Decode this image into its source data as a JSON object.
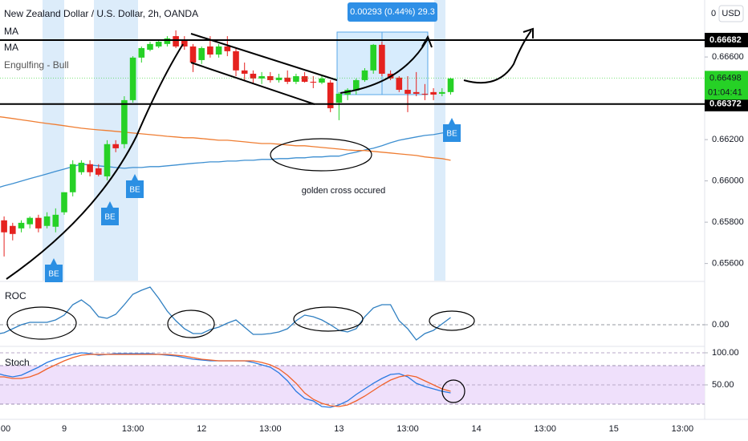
{
  "chart_data": {
    "type": "candlestick",
    "title": "New Zealand Dollar / U.S. Dollar, 2h, OANDA",
    "signal_name": "Engulfing - Bull",
    "signal_marker": "BE",
    "corner_text": "0",
    "currency_label": "USD",
    "measure_label": "0.00293 (0.44%) 29.3",
    "annotation": "golden cross occured",
    "up_color": "#26d126",
    "down_color": "#e5221f",
    "categories": [
      "00",
      null,
      null,
      null,
      null,
      null,
      null,
      null,
      "9",
      null,
      null,
      null,
      null,
      null,
      null,
      null,
      "13:00",
      null,
      null,
      null,
      null,
      null,
      null,
      null,
      "12",
      null,
      null,
      null,
      null,
      null,
      null,
      null,
      "13:00",
      null,
      null,
      null,
      null,
      null,
      null,
      null,
      "13",
      null,
      null,
      null,
      null,
      null,
      null,
      null,
      "13:00",
      null,
      null,
      null,
      null,
      null,
      null,
      null,
      "14",
      null,
      null,
      null,
      null,
      null,
      null,
      null,
      "13:00",
      null,
      null,
      null,
      null,
      null,
      null,
      null,
      "15",
      null,
      null,
      null,
      null,
      null,
      null,
      null,
      "13:00"
    ],
    "open": [
      null,
      0.65809,
      0.65782,
      0.6577,
      0.6579,
      0.65821,
      0.65782,
      0.65778,
      0.65848,
      0.65945,
      0.66042,
      0.66081,
      0.66061,
      0.66022,
      0.66178,
      0.66178,
      0.66391,
      0.66597,
      0.66635,
      0.66651,
      0.66663,
      0.66701,
      0.66682,
      0.66651,
      0.66585,
      0.66651,
      0.66612,
      0.66651,
      0.66628,
      0.66535,
      0.66519,
      0.66496,
      0.66507,
      0.66488,
      0.665,
      0.6648,
      0.66507,
      0.6648,
      0.66476,
      0.66476,
      0.66379,
      0.66418,
      0.66438,
      0.66488,
      0.66535,
      0.66659,
      0.66519,
      0.665,
      0.66441,
      0.6643,
      0.66422,
      0.6643,
      0.66422,
      0.6643,
      null,
      null,
      null,
      null,
      null,
      null,
      null,
      null,
      null,
      null,
      null,
      null,
      null,
      null,
      null,
      null,
      null,
      null,
      null,
      null,
      null,
      null,
      null,
      null,
      null,
      null,
      null
    ],
    "high": [
      null,
      0.65828,
      0.65797,
      0.65809,
      0.65828,
      0.65836,
      0.65848,
      0.65867,
      0.65945,
      0.661,
      0.661,
      0.661,
      0.66081,
      0.66197,
      0.66197,
      0.6641,
      0.66604,
      0.66651,
      0.66674,
      0.66682,
      0.66701,
      0.66729,
      0.66701,
      0.66663,
      0.66651,
      0.66701,
      0.66663,
      0.66701,
      0.66643,
      0.66573,
      0.66535,
      0.66527,
      0.66527,
      0.66519,
      0.66535,
      0.66519,
      0.66527,
      0.66507,
      0.66507,
      0.66488,
      0.6643,
      0.66449,
      0.66496,
      0.66546,
      0.66663,
      0.66674,
      0.66535,
      0.66507,
      0.66507,
      0.66527,
      0.66469,
      0.66449,
      0.66449,
      0.665,
      null,
      null,
      null,
      null,
      null,
      null,
      null,
      null,
      null,
      null,
      null,
      null,
      null,
      null,
      null,
      null,
      null,
      null,
      null,
      null,
      null,
      null,
      null,
      null,
      null,
      null,
      null
    ],
    "low": [
      null,
      0.65634,
      0.65712,
      0.65751,
      0.6577,
      0.65751,
      0.6577,
      0.65751,
      0.65836,
      0.65925,
      0.6603,
      0.66022,
      0.66022,
      0.66003,
      0.66139,
      0.66158,
      0.66379,
      0.66573,
      0.66628,
      0.66643,
      0.66651,
      0.66643,
      0.66635,
      0.66527,
      0.66566,
      0.66597,
      0.66597,
      0.66604,
      0.66507,
      0.66488,
      0.66469,
      0.66469,
      0.66476,
      0.66476,
      0.66469,
      0.66469,
      0.66476,
      0.66449,
      0.66469,
      0.66333,
      0.66294,
      0.66391,
      0.66418,
      0.6648,
      0.66519,
      0.66507,
      0.66488,
      0.6643,
      0.66333,
      0.6641,
      0.66391,
      0.66391,
      0.6641,
      0.66418,
      null,
      null,
      null,
      null,
      null,
      null,
      null,
      null,
      null,
      null,
      null,
      null,
      null,
      null,
      null,
      null,
      null,
      null,
      null,
      null,
      null,
      null,
      null,
      null,
      null,
      null,
      null
    ],
    "close": [
      null,
      0.65751,
      0.65743,
      0.65797,
      0.65821,
      0.6577,
      0.65828,
      0.65836,
      0.65945,
      0.66081,
      0.66088,
      0.66042,
      0.6603,
      0.66178,
      0.66158,
      0.66391,
      0.66597,
      0.66643,
      0.66663,
      0.66674,
      0.6669,
      0.66651,
      0.66651,
      0.66573,
      0.66643,
      0.66612,
      0.66651,
      0.66628,
      0.66535,
      0.66519,
      0.66496,
      0.66507,
      0.66488,
      0.665,
      0.6648,
      0.66507,
      0.6648,
      0.66476,
      0.66496,
      0.66352,
      0.66422,
      0.66441,
      0.66488,
      0.66535,
      0.66659,
      0.66519,
      0.66496,
      0.66441,
      0.66422,
      0.66422,
      0.66418,
      0.66418,
      0.6643,
      0.66496,
      null,
      null,
      null,
      null,
      null,
      null,
      null,
      null,
      null,
      null,
      null,
      null,
      null,
      null,
      null,
      null,
      null,
      null,
      null,
      null,
      null,
      null,
      null,
      null,
      null,
      null,
      null
    ],
    "series": [
      {
        "name": "MA",
        "color": "#3d8fd1",
        "values": [
          0.65964,
          0.65976,
          0.65987,
          0.65999,
          0.66011,
          0.66022,
          0.66034,
          0.66046,
          0.66057,
          0.66069,
          0.66081,
          0.66077,
          0.66073,
          0.66069,
          0.66065,
          0.66061,
          0.66065,
          0.66065,
          0.66069,
          0.66069,
          0.66073,
          0.66077,
          0.66081,
          0.66085,
          0.66088,
          0.66092,
          0.66092,
          0.66096,
          0.66096,
          0.661,
          0.661,
          0.66104,
          0.66104,
          0.66108,
          0.66108,
          0.66112,
          0.66112,
          0.66116,
          0.66116,
          0.6612,
          0.6612,
          0.66131,
          0.66139,
          0.6615,
          0.66158,
          0.6617,
          0.66185,
          0.66197,
          0.66205,
          0.66213,
          0.6622,
          0.66224,
          0.66232,
          0.66236,
          null,
          null,
          null,
          null,
          null,
          null,
          null,
          null,
          null,
          null,
          null,
          null,
          null,
          null,
          null,
          null,
          null,
          null,
          null,
          null,
          null,
          null,
          null,
          null,
          null,
          null,
          null
        ]
      },
      {
        "name": "MA",
        "color": "#ef7d32",
        "values": [
          0.66313,
          0.66308,
          0.66302,
          0.66296,
          0.6629,
          0.66284,
          0.66278,
          0.66273,
          0.66267,
          0.66261,
          0.66255,
          0.66251,
          0.66247,
          0.66244,
          0.6624,
          0.66236,
          0.66232,
          0.66228,
          0.66224,
          0.6622,
          0.66216,
          0.66213,
          0.66209,
          0.66209,
          0.66205,
          0.66201,
          0.66197,
          0.66197,
          0.66193,
          0.66189,
          0.66185,
          0.66181,
          0.66181,
          0.66178,
          0.66174,
          0.6617,
          0.6617,
          0.66166,
          0.66162,
          0.66158,
          0.66154,
          0.6615,
          0.66147,
          0.66147,
          0.66143,
          0.66139,
          0.66135,
          0.66131,
          0.66127,
          0.66123,
          0.66116,
          0.66112,
          0.66108,
          0.661,
          null,
          null,
          null,
          null,
          null,
          null,
          null,
          null,
          null,
          null,
          null,
          null,
          null,
          null,
          null,
          null,
          null,
          null,
          null,
          null,
          null,
          null,
          null,
          null,
          null,
          null,
          null
        ]
      }
    ],
    "ylim": [
      0.65517,
      0.66876
    ],
    "yticks": [
      {
        "value": 0.656,
        "label": "0.65600"
      },
      {
        "value": 0.658,
        "label": "0.65800"
      },
      {
        "value": 0.66,
        "label": "0.66000"
      },
      {
        "value": 0.662,
        "label": "0.66200"
      },
      {
        "value": 0.666,
        "label": "0.66600"
      }
    ],
    "level_lines": [
      0.66682,
      0.66372
    ],
    "last_price": 0.66498,
    "countdown": "01:04:41",
    "roc": {
      "title": "ROC",
      "color": "#2f7fc1",
      "ylim": [
        -0.25,
        0.5
      ],
      "yticks": [
        {
          "value": 0,
          "label": "0.00"
        }
      ],
      "values": [
        -0.12,
        -0.1,
        -0.05,
        0,
        0.03,
        0.03,
        0.03,
        0.06,
        0.12,
        0.25,
        0.31,
        0.23,
        0.1,
        0.08,
        0.13,
        0.25,
        0.38,
        0.43,
        0.47,
        0.33,
        0.17,
        0.05,
        -0.05,
        -0.11,
        -0.11,
        -0.06,
        -0.03,
        0.02,
        0.06,
        -0.03,
        -0.12,
        -0.12,
        -0.11,
        -0.09,
        -0.05,
        0.05,
        0.12,
        0.1,
        0.06,
        0,
        -0.07,
        -0.09,
        -0.05,
        0.1,
        0.21,
        0.25,
        0.25,
        0.05,
        -0.05,
        -0.19,
        -0.11,
        -0.07,
        0.01,
        0.09,
        null,
        null,
        null,
        null,
        null,
        null,
        null,
        null,
        null,
        null,
        null,
        null,
        null,
        null,
        null,
        null,
        null,
        null,
        null,
        null,
        null,
        null,
        null,
        null,
        null,
        null,
        null
      ]
    },
    "stoch": {
      "title": "Stoch",
      "ylim": [
        -6.25,
        106.25
      ],
      "yticks": [
        {
          "value": 50,
          "label": "50.00"
        },
        {
          "value": 100,
          "label": "100.00"
        }
      ],
      "series": [
        {
          "color": "#2a7ae2",
          "values": [
            68.75,
            65,
            62.5,
            65,
            71.25,
            77.5,
            85,
            90,
            93.75,
            97.5,
            100,
            98.75,
            96.25,
            97.5,
            98.75,
            98.75,
            98.75,
            98.75,
            98.75,
            97.5,
            96.25,
            95,
            92.5,
            90,
            88.75,
            87.5,
            87.5,
            87.5,
            87.5,
            87.5,
            85,
            81.25,
            77.5,
            68.75,
            56.25,
            40,
            28.75,
            25,
            16.25,
            15,
            18.75,
            25,
            35,
            43.75,
            52.5,
            60,
            66.25,
            67.5,
            62.5,
            52.5,
            47.5,
            43.75,
            40,
            37.5,
            null,
            null,
            null,
            null,
            null,
            null,
            null,
            null,
            null,
            null,
            null,
            null,
            null,
            null,
            null,
            null,
            null,
            null,
            null,
            null,
            null,
            null,
            null,
            null,
            null,
            null,
            null
          ]
        },
        {
          "color": "#f0612a",
          "values": [
            62.5,
            62.5,
            60,
            60,
            62.5,
            67.5,
            75,
            81.25,
            87.5,
            92.5,
            96.25,
            97.5,
            97.5,
            97.5,
            97.5,
            97.5,
            97.5,
            97.5,
            97.5,
            97.5,
            97.5,
            96.25,
            95,
            92.5,
            90,
            88.75,
            87.5,
            87.5,
            87.5,
            87.5,
            87.5,
            85,
            81.25,
            75,
            65,
            52.5,
            37.5,
            27.5,
            21.25,
            17.5,
            16.25,
            18.75,
            25,
            32.5,
            41.25,
            50,
            57.5,
            62.5,
            65,
            62.5,
            56.25,
            50,
            43.75,
            40,
            null,
            null,
            null,
            null,
            null,
            null,
            null,
            null,
            null,
            null,
            null,
            null,
            null,
            null,
            null,
            null,
            null,
            null,
            null,
            null,
            null,
            null,
            null,
            null,
            null,
            null,
            null
          ]
        }
      ]
    }
  }
}
